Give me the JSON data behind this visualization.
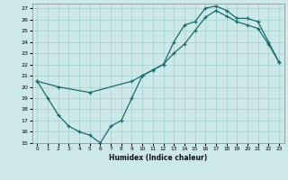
{
  "xlabel": "Humidex (Indice chaleur)",
  "bg_color": "#cce8e8",
  "line_color": "#1a6b6b",
  "grid_color": "#aad4d4",
  "xlim": [
    -0.5,
    23.5
  ],
  "ylim": [
    15,
    27.4
  ],
  "xticks": [
    0,
    1,
    2,
    3,
    4,
    5,
    6,
    7,
    8,
    9,
    10,
    11,
    12,
    13,
    14,
    15,
    16,
    17,
    18,
    19,
    20,
    21,
    22,
    23
  ],
  "yticks": [
    15,
    16,
    17,
    18,
    19,
    20,
    21,
    22,
    23,
    24,
    25,
    26,
    27
  ],
  "series1_x": [
    0,
    1,
    2,
    3,
    4,
    5,
    6,
    7,
    8,
    9,
    10,
    11,
    12,
    13,
    14,
    15,
    16,
    17,
    18,
    19,
    20,
    21,
    22,
    23
  ],
  "series1_y": [
    20.5,
    19.0,
    17.5,
    16.5,
    16.0,
    15.7,
    15.0,
    16.5,
    17.0,
    19.0,
    21.0,
    21.5,
    22.0,
    24.0,
    25.5,
    25.8,
    27.0,
    27.2,
    26.8,
    26.1,
    26.1,
    25.8,
    24.0,
    22.2
  ],
  "series2_x": [
    0,
    2,
    5,
    9,
    10,
    11,
    12,
    13,
    14,
    15,
    16,
    17,
    18,
    19,
    20,
    21,
    22,
    23
  ],
  "series2_y": [
    20.5,
    20.0,
    19.5,
    20.5,
    21.0,
    21.5,
    22.0,
    23.0,
    23.8,
    25.0,
    26.2,
    26.8,
    26.3,
    25.8,
    25.5,
    25.2,
    23.8,
    22.2
  ]
}
